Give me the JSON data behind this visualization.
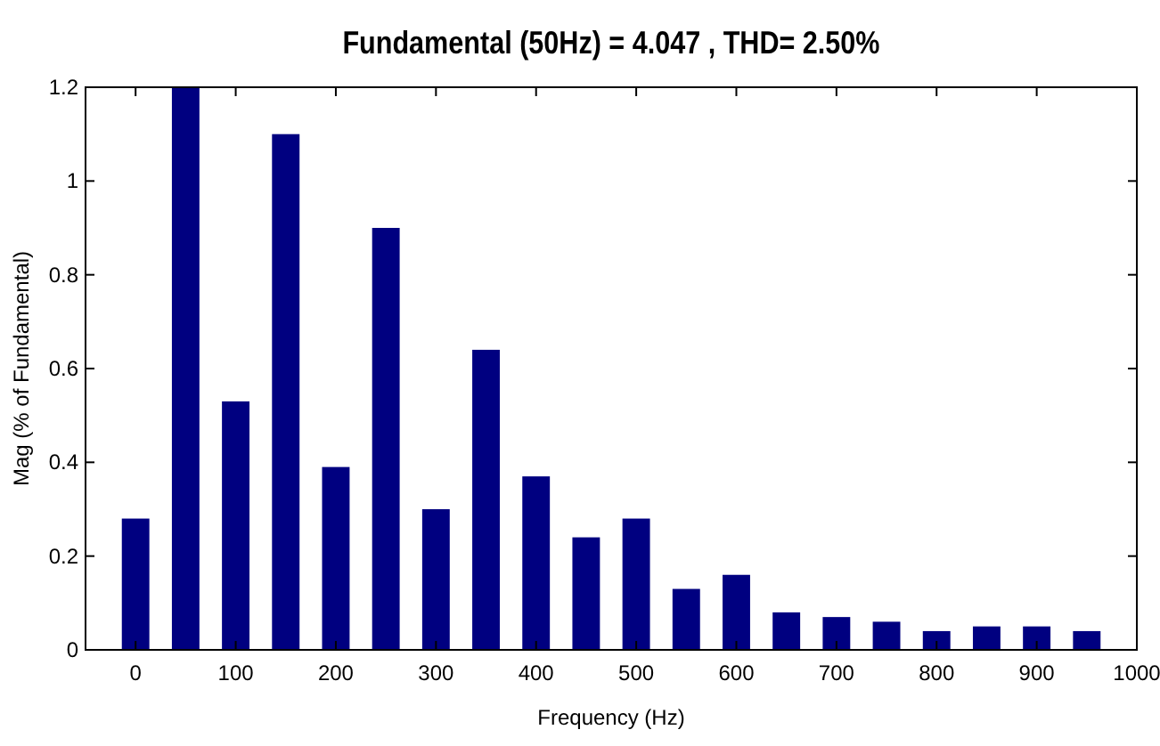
{
  "chart_data": {
    "type": "bar",
    "title": "Fundamental (50Hz) = 4.047 , THD= 2.50%",
    "xlabel": "Frequency (Hz)",
    "ylabel": "Mag (% of Fundamental)",
    "x": [
      0,
      50,
      100,
      150,
      200,
      250,
      300,
      350,
      400,
      450,
      500,
      550,
      600,
      650,
      700,
      750,
      800,
      850,
      900,
      950
    ],
    "values": [
      0.28,
      1.2,
      0.53,
      1.1,
      0.39,
      0.9,
      0.3,
      0.64,
      0.37,
      0.24,
      0.28,
      0.13,
      0.16,
      0.08,
      0.07,
      0.06,
      0.04,
      0.05,
      0.05,
      0.04
    ],
    "color": "#000080",
    "xlim": [
      -50,
      1000
    ],
    "ylim": [
      0,
      1.2
    ],
    "xticks": [
      0,
      100,
      200,
      300,
      400,
      500,
      600,
      700,
      800,
      900,
      1000
    ],
    "yticks": [
      0,
      0.2,
      0.4,
      0.6,
      0.8,
      1,
      1.2
    ],
    "grid": false
  }
}
